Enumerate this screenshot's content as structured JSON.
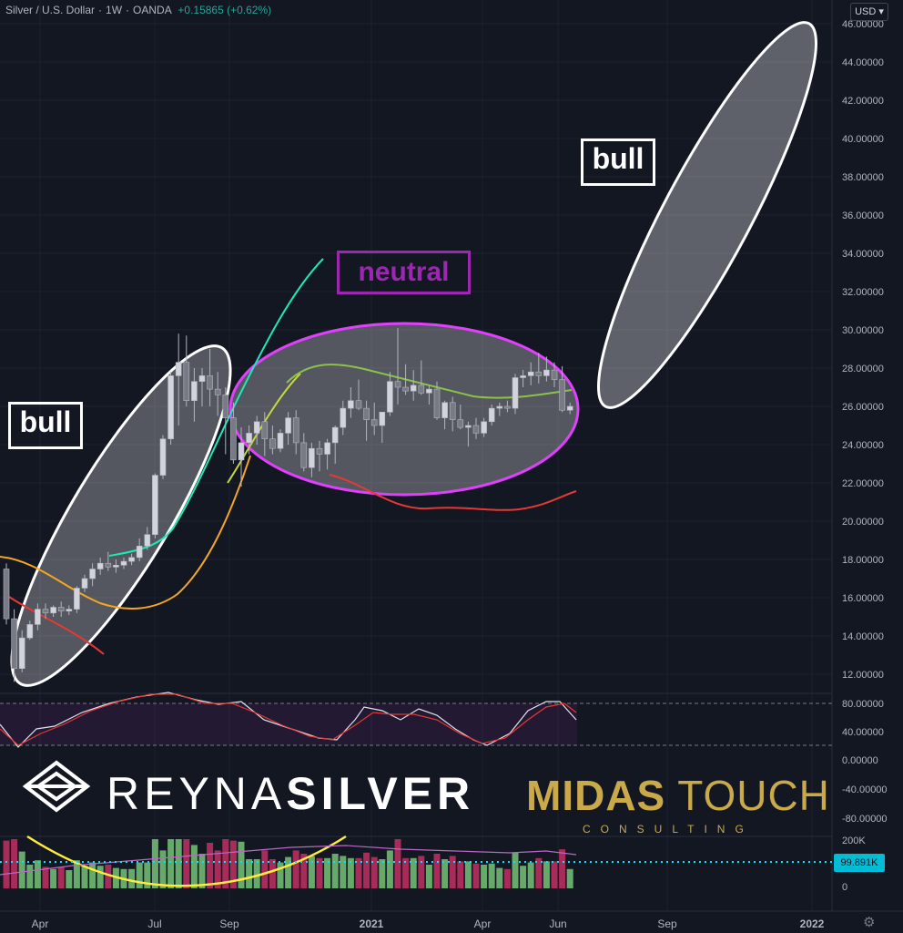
{
  "header": {
    "symbol": "Silver / U.S. Dollar",
    "interval": "1W",
    "source": "OANDA",
    "change": "+0.15865 (+0.62%)",
    "currency": "USD"
  },
  "annotations": {
    "bull_left": "bull",
    "bull_right": "bull",
    "neutral": "neutral"
  },
  "logos": {
    "reyna_light": "REYNA",
    "reyna_bold": "SILVER",
    "midas_bold": "MIDAS",
    "midas_light": "TOUCH",
    "consulting": "CONSULTING"
  },
  "volume_last_label": "99.891K",
  "colors": {
    "background": "#131722",
    "candle": "#b2b5be",
    "bull_ellipse": "#ffffff",
    "neutral_ellipse": "#e040fb",
    "neutral_label": "#9c27b0",
    "vol_up": "#66a96b",
    "vol_down": "#a82c5a",
    "vol_line": "#00e5ff"
  },
  "chart_data": {
    "type": "candlestick",
    "price_axis": {
      "min": 11,
      "max": 46,
      "ticks": [
        "46.00000",
        "44.00000",
        "42.00000",
        "40.00000",
        "38.00000",
        "36.00000",
        "34.00000",
        "32.00000",
        "30.00000",
        "28.00000",
        "26.00000",
        "24.00000",
        "22.00000",
        "20.00000",
        "18.00000",
        "16.00000",
        "14.00000",
        "12.00000"
      ]
    },
    "x_axis": {
      "ticks": [
        "Apr",
        "Jul",
        "Sep",
        "2021",
        "Apr",
        "Jun",
        "Sep",
        "2022"
      ]
    },
    "candles_ohlc": [
      [
        17.5,
        17.8,
        14.6,
        14.9
      ],
      [
        14.9,
        15.4,
        11.6,
        12.3
      ],
      [
        12.3,
        14.3,
        12.1,
        13.9
      ],
      [
        13.9,
        14.8,
        13.8,
        14.6
      ],
      [
        14.6,
        15.7,
        14.3,
        15.4
      ],
      [
        15.4,
        15.7,
        14.9,
        15.2
      ],
      [
        15.2,
        15.6,
        15.0,
        15.5
      ],
      [
        15.5,
        15.8,
        15.0,
        15.3
      ],
      [
        15.3,
        15.6,
        15.1,
        15.4
      ],
      [
        15.4,
        16.6,
        15.2,
        16.5
      ],
      [
        16.5,
        17.2,
        16.3,
        17.0
      ],
      [
        17.0,
        17.8,
        16.6,
        17.5
      ],
      [
        17.5,
        18.1,
        17.2,
        17.8
      ],
      [
        17.8,
        18.4,
        17.4,
        17.6
      ],
      [
        17.6,
        18.0,
        17.3,
        17.7
      ],
      [
        17.7,
        18.1,
        17.5,
        17.9
      ],
      [
        17.9,
        18.3,
        17.7,
        18.1
      ],
      [
        18.1,
        19.1,
        17.9,
        18.7
      ],
      [
        18.7,
        19.7,
        18.5,
        19.3
      ],
      [
        19.3,
        22.5,
        19.1,
        22.4
      ],
      [
        22.4,
        24.5,
        22.2,
        24.3
      ],
      [
        24.3,
        27.8,
        24.0,
        27.6
      ],
      [
        27.6,
        29.8,
        25.0,
        28.3
      ],
      [
        28.3,
        29.7,
        26.0,
        26.3
      ],
      [
        26.3,
        28.0,
        25.2,
        27.3
      ],
      [
        27.3,
        28.0,
        26.0,
        27.6
      ],
      [
        27.6,
        29.0,
        26.0,
        26.9
      ],
      [
        26.9,
        27.8,
        25.5,
        26.6
      ],
      [
        26.6,
        27.0,
        23.5,
        25.4
      ],
      [
        25.4,
        26.2,
        23.0,
        23.2
      ],
      [
        23.2,
        24.9,
        21.8,
        24.1
      ],
      [
        24.1,
        25.0,
        23.5,
        24.6
      ],
      [
        24.6,
        25.5,
        24.0,
        25.2
      ],
      [
        25.2,
        25.7,
        23.4,
        24.3
      ],
      [
        24.3,
        25.0,
        23.5,
        23.8
      ],
      [
        23.8,
        24.8,
        23.6,
        24.6
      ],
      [
        24.6,
        25.7,
        24.0,
        25.4
      ],
      [
        25.4,
        25.8,
        23.5,
        24.1
      ],
      [
        24.1,
        24.6,
        22.6,
        22.8
      ],
      [
        22.8,
        24.1,
        22.3,
        23.8
      ],
      [
        23.8,
        24.2,
        22.6,
        23.5
      ],
      [
        23.5,
        24.3,
        22.7,
        24.1
      ],
      [
        24.1,
        25.0,
        23.0,
        24.9
      ],
      [
        24.9,
        26.3,
        24.5,
        25.9
      ],
      [
        25.9,
        27.0,
        25.4,
        26.3
      ],
      [
        26.3,
        27.4,
        25.8,
        25.9
      ],
      [
        25.9,
        26.3,
        24.2,
        25.3
      ],
      [
        25.3,
        26.2,
        24.5,
        25.0
      ],
      [
        25.0,
        25.6,
        24.1,
        25.7
      ],
      [
        25.7,
        27.8,
        25.5,
        27.3
      ],
      [
        27.3,
        30.1,
        26.1,
        27.0
      ],
      [
        27.0,
        28.2,
        26.6,
        26.8
      ],
      [
        26.8,
        27.9,
        26.3,
        27.1
      ],
      [
        27.1,
        28.4,
        26.6,
        26.7
      ],
      [
        26.7,
        27.1,
        26.1,
        26.9
      ],
      [
        26.9,
        27.3,
        25.3,
        25.4
      ],
      [
        25.4,
        26.3,
        24.8,
        26.2
      ],
      [
        26.2,
        26.5,
        24.7,
        25.3
      ],
      [
        25.3,
        26.1,
        24.8,
        24.9
      ],
      [
        24.9,
        25.2,
        23.9,
        25.0
      ],
      [
        25.0,
        25.4,
        24.3,
        24.6
      ],
      [
        24.6,
        25.4,
        24.4,
        25.2
      ],
      [
        25.2,
        26.1,
        25.0,
        25.9
      ],
      [
        25.9,
        26.2,
        25.5,
        26.0
      ],
      [
        26.0,
        26.3,
        25.7,
        25.9
      ],
      [
        25.9,
        27.7,
        25.6,
        27.5
      ],
      [
        27.5,
        27.9,
        27.0,
        27.6
      ],
      [
        27.6,
        28.3,
        27.1,
        27.8
      ],
      [
        27.8,
        28.8,
        27.2,
        27.6
      ],
      [
        27.6,
        28.6,
        27.3,
        27.9
      ],
      [
        27.9,
        28.3,
        27.0,
        27.4
      ],
      [
        27.4,
        28.1,
        25.7,
        25.8
      ],
      [
        25.8,
        26.2,
        25.6,
        26.0
      ]
    ],
    "moving_averages": [
      {
        "name": "fast",
        "points": [
          [
            18.2,
            0
          ],
          [
            17.9,
            3
          ],
          [
            17.2,
            6
          ],
          [
            16.4,
            9
          ],
          [
            15.8,
            12
          ],
          [
            15.5,
            15
          ],
          [
            15.4,
            18
          ],
          [
            15.7,
            21
          ],
          [
            17.0,
            24
          ],
          [
            18.5,
            27
          ]
        ]
      },
      {
        "name": "slow",
        "points": [
          [
            15.5,
            18
          ],
          [
            16.5,
            21
          ],
          [
            18.8,
            24
          ],
          [
            22.5,
            27
          ],
          [
            25.2,
            30
          ],
          [
            27.5,
            33
          ],
          [
            28.3,
            36
          ],
          [
            27.8,
            39
          ],
          [
            27.2,
            42
          ],
          [
            26.9,
            45
          ],
          [
            26.6,
            48
          ],
          [
            26.5,
            51
          ],
          [
            26.8,
            54
          ],
          [
            26.5,
            57
          ],
          [
            26.7,
            60
          ]
        ]
      }
    ],
    "stoch": {
      "axis_ticks": [
        "80.00000",
        "40.00000",
        "0.00000",
        "-40.00000",
        "-80.00000"
      ],
      "upper": 80,
      "lower": 20
    },
    "volume": {
      "axis_ticks": [
        "200K",
        "0"
      ],
      "last": "99.891K"
    }
  }
}
